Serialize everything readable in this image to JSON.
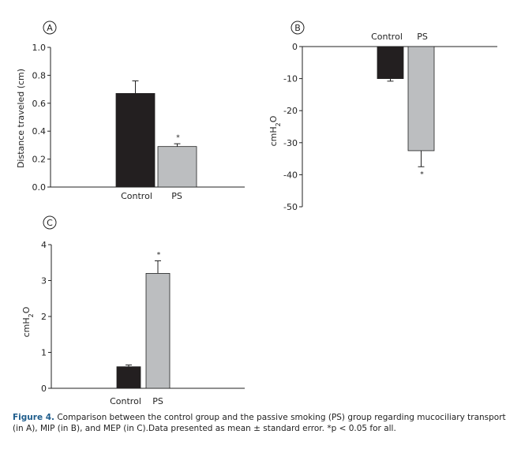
{
  "colors": {
    "control": "#231f20",
    "ps": "#bcbec0"
  },
  "chart_data": [
    {
      "panel": "A",
      "type": "bar",
      "categories": [
        "Control",
        "PS"
      ],
      "values": [
        0.67,
        0.29
      ],
      "errors": [
        0.09,
        0.02
      ],
      "significant": [
        false,
        true
      ],
      "ylabel": "Distance traveled (cm)",
      "ylim": [
        0.0,
        1.0
      ],
      "yticks": [
        "0.0",
        "0.2",
        "0.4",
        "0.6",
        "0.8",
        "1.0"
      ],
      "category_axis_position": "bottom"
    },
    {
      "panel": "B",
      "type": "bar",
      "categories": [
        "Control",
        "PS"
      ],
      "values": [
        -10,
        -32.5
      ],
      "errors": [
        0.8,
        5
      ],
      "significant": [
        false,
        true
      ],
      "ylabel": "cmH2O",
      "ylim": [
        -50,
        0
      ],
      "yticks": [
        "0",
        "-10",
        "-20",
        "-30",
        "-40",
        "-50"
      ],
      "category_axis_position": "top"
    },
    {
      "panel": "C",
      "type": "bar",
      "categories": [
        "Control",
        "PS"
      ],
      "values": [
        0.6,
        3.2
      ],
      "errors": [
        0.05,
        0.35
      ],
      "significant": [
        false,
        true
      ],
      "ylabel": "cmH2O",
      "ylim": [
        0,
        4
      ],
      "yticks": [
        "0",
        "1",
        "2",
        "3",
        "4"
      ],
      "category_axis_position": "bottom"
    }
  ],
  "caption": {
    "lead": "Figure 4.",
    "text": " Comparison between the control group and the passive smoking (PS) group regarding mucociliary transport (in A), MIP (in B), and MEP (in C).Data presented as mean ± standard error. *p < 0.05 for all."
  },
  "significance_marker": "*"
}
